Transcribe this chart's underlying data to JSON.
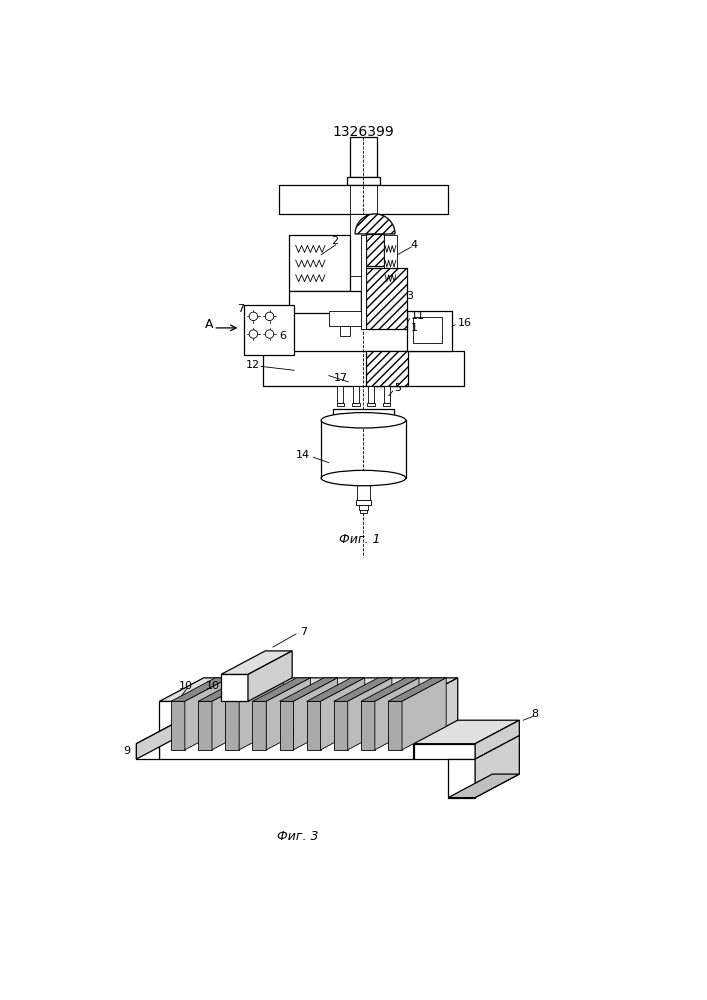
{
  "title": "1326399",
  "fig1_caption": "Фиг. 1",
  "fig3_caption": "Фиг. 3",
  "bg_color": "#ffffff",
  "line_color": "#000000",
  "title_fontsize": 10,
  "caption_fontsize": 9,
  "label_fontsize": 8
}
